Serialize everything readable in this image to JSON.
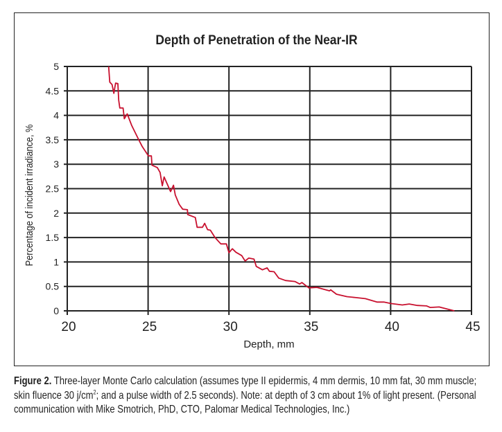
{
  "chart_data": {
    "type": "line",
    "title": "Depth of Penetration of the Near-IR",
    "xlabel": "Depth, mm",
    "ylabel": "Percentage of incident irradiance, %",
    "xlim": [
      20,
      45
    ],
    "ylim": [
      0,
      5
    ],
    "xticks": [
      "20",
      "25",
      "30",
      "35",
      "40",
      "45"
    ],
    "yticks": [
      "0",
      "0.5",
      "1",
      "1.5",
      "2",
      "2.5",
      "3",
      "3.5",
      "4",
      "4.5",
      "5"
    ],
    "grid": true,
    "legend": "none",
    "series": [
      {
        "name": "Irradiance",
        "color": "#c8102e",
        "x": [
          22.56,
          22.63,
          22.77,
          22.88,
          22.99,
          23.13,
          23.18,
          23.25,
          23.45,
          23.53,
          23.71,
          23.99,
          24.42,
          24.64,
          25.02,
          25.2,
          25.24,
          25.57,
          25.74,
          25.88,
          25.99,
          26.39,
          26.57,
          26.68,
          26.92,
          27.14,
          27.43,
          27.45,
          27.92,
          28.03,
          28.36,
          28.5,
          28.68,
          28.85,
          29.14,
          29.5,
          29.84,
          30.0,
          30.21,
          30.43,
          30.79,
          31.0,
          31.22,
          31.55,
          31.69,
          32.07,
          32.36,
          32.5,
          32.79,
          33.08,
          33.5,
          34.08,
          34.37,
          34.51,
          34.94,
          35.44,
          36.22,
          36.29,
          36.65,
          37.3,
          37.87,
          38.44,
          39.15,
          39.58,
          40.01,
          40.72,
          41.15,
          41.65,
          42.23,
          42.44,
          43.0,
          43.58,
          43.94
        ],
        "y": [
          5.0,
          4.68,
          4.63,
          4.45,
          4.66,
          4.65,
          4.31,
          4.15,
          4.15,
          3.93,
          4.03,
          3.79,
          3.5,
          3.36,
          3.17,
          3.17,
          2.98,
          2.93,
          2.83,
          2.56,
          2.74,
          2.44,
          2.57,
          2.37,
          2.18,
          2.08,
          2.07,
          1.97,
          1.91,
          1.71,
          1.71,
          1.79,
          1.66,
          1.65,
          1.5,
          1.37,
          1.37,
          1.19,
          1.27,
          1.2,
          1.13,
          1.02,
          1.08,
          1.06,
          0.91,
          0.84,
          0.88,
          0.81,
          0.8,
          0.67,
          0.62,
          0.6,
          0.55,
          0.58,
          0.47,
          0.48,
          0.41,
          0.43,
          0.34,
          0.29,
          0.27,
          0.25,
          0.18,
          0.18,
          0.15,
          0.12,
          0.14,
          0.11,
          0.1,
          0.07,
          0.08,
          0.03,
          0.0
        ]
      }
    ]
  },
  "caption": {
    "label": "Figure 2.",
    "text_before_sup": " Three-layer Monte Carlo calculation (assumes type II epidermis, 4 mm dermis, 10 mm fat, 30 mm muscle; skin fluence 30 j/cm",
    "sup": "2",
    "text_after_sup": "; and a pulse width of 2.5 seconds). Note: at depth of 3 cm about 1% of light present. (Personal communication with Mike Smotrich, PhD, CTO, Palomar Medical Technologies, Inc.)"
  }
}
